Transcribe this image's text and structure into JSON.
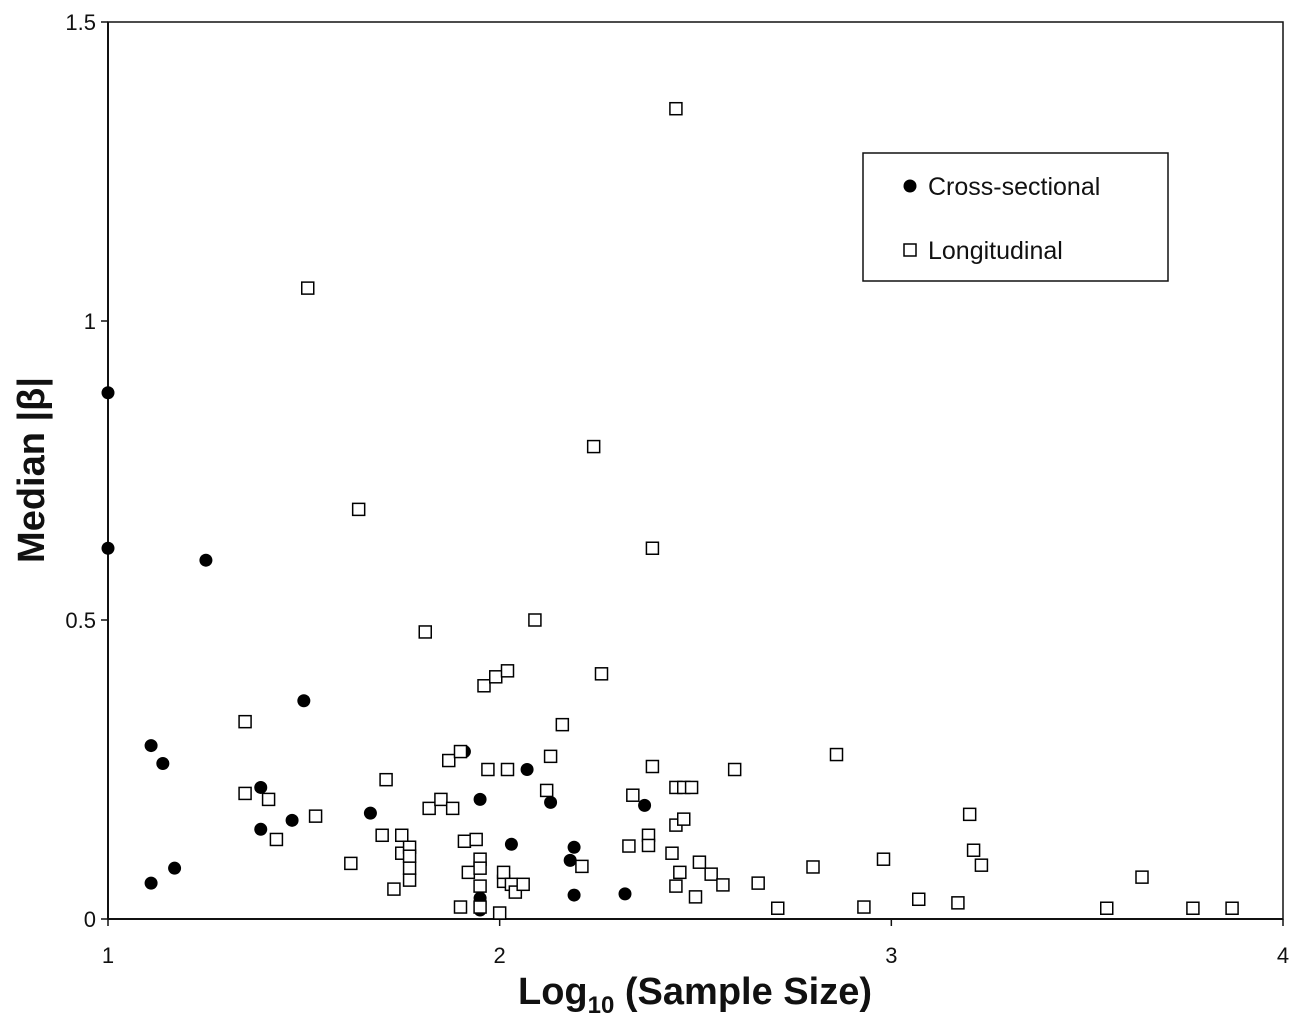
{
  "chart_data": {
    "type": "scatter",
    "xlabel": "Log",
    "xlabel_subscript": "10",
    "xlabel_rest": " (Sample Size)",
    "ylabel": "Median |β|",
    "xlim": [
      1,
      4
    ],
    "ylim": [
      0,
      1.5
    ],
    "x_ticks": [
      "1",
      "2",
      "3",
      "4"
    ],
    "y_ticks": [
      "0",
      "0.5",
      "1",
      "1.5"
    ],
    "grid": false,
    "legend_position": "top-right",
    "series": [
      {
        "name": "Cross-sectional",
        "marker": "filled-circle",
        "color": "#000000",
        "points": [
          [
            1.0,
            0.88
          ],
          [
            1.0,
            0.62
          ],
          [
            1.11,
            0.29
          ],
          [
            1.14,
            0.26
          ],
          [
            1.11,
            0.06
          ],
          [
            1.17,
            0.085
          ],
          [
            1.25,
            0.6
          ],
          [
            1.39,
            0.22
          ],
          [
            1.39,
            0.15
          ],
          [
            1.47,
            0.165
          ],
          [
            1.5,
            0.365
          ],
          [
            1.67,
            0.177
          ],
          [
            1.91,
            0.28
          ],
          [
            1.95,
            0.2
          ],
          [
            1.95,
            0.035
          ],
          [
            1.95,
            0.025
          ],
          [
            1.95,
            0.015
          ],
          [
            2.03,
            0.125
          ],
          [
            2.07,
            0.25
          ],
          [
            2.13,
            0.195
          ],
          [
            2.18,
            0.098
          ],
          [
            2.19,
            0.12
          ],
          [
            2.19,
            0.04
          ],
          [
            2.32,
            0.042
          ],
          [
            2.37,
            0.19
          ]
        ]
      },
      {
        "name": "Longitudinal",
        "marker": "open-square",
        "color": "#000000",
        "points": [
          [
            1.35,
            0.33
          ],
          [
            1.35,
            0.21
          ],
          [
            1.41,
            0.2
          ],
          [
            1.43,
            0.133
          ],
          [
            1.51,
            1.055
          ],
          [
            1.53,
            0.172
          ],
          [
            1.62,
            0.093
          ],
          [
            1.64,
            0.685
          ],
          [
            1.7,
            0.14
          ],
          [
            1.71,
            0.233
          ],
          [
            1.73,
            0.05
          ],
          [
            1.75,
            0.14
          ],
          [
            1.75,
            0.11
          ],
          [
            1.77,
            0.12
          ],
          [
            1.77,
            0.105
          ],
          [
            1.77,
            0.085
          ],
          [
            1.77,
            0.065
          ],
          [
            1.81,
            0.48
          ],
          [
            1.82,
            0.185
          ],
          [
            1.85,
            0.2
          ],
          [
            1.87,
            0.265
          ],
          [
            1.88,
            0.185
          ],
          [
            1.9,
            0.28
          ],
          [
            1.9,
            0.02
          ],
          [
            1.91,
            0.13
          ],
          [
            1.92,
            0.078
          ],
          [
            1.94,
            0.133
          ],
          [
            1.95,
            0.1
          ],
          [
            1.95,
            0.085
          ],
          [
            1.95,
            0.055
          ],
          [
            1.95,
            0.02
          ],
          [
            1.96,
            0.39
          ],
          [
            1.97,
            0.25
          ],
          [
            1.99,
            0.405
          ],
          [
            2.0,
            0.01
          ],
          [
            2.01,
            0.063
          ],
          [
            2.01,
            0.078
          ],
          [
            2.02,
            0.415
          ],
          [
            2.02,
            0.25
          ],
          [
            2.03,
            0.058
          ],
          [
            2.04,
            0.045
          ],
          [
            2.06,
            0.058
          ],
          [
            2.09,
            0.5
          ],
          [
            2.12,
            0.215
          ],
          [
            2.13,
            0.272
          ],
          [
            2.16,
            0.325
          ],
          [
            2.21,
            0.088
          ],
          [
            2.24,
            0.79
          ],
          [
            2.26,
            0.41
          ],
          [
            2.33,
            0.122
          ],
          [
            2.34,
            0.207
          ],
          [
            2.38,
            0.14
          ],
          [
            2.38,
            0.123
          ],
          [
            2.39,
            0.255
          ],
          [
            2.39,
            0.62
          ],
          [
            2.44,
            0.11
          ],
          [
            2.45,
            0.22
          ],
          [
            2.45,
            0.157
          ],
          [
            2.45,
            0.055
          ],
          [
            2.45,
            1.355
          ],
          [
            2.46,
            0.078
          ],
          [
            2.47,
            0.167
          ],
          [
            2.47,
            0.22
          ],
          [
            2.49,
            0.22
          ],
          [
            2.5,
            0.037
          ],
          [
            2.51,
            0.095
          ],
          [
            2.54,
            0.075
          ],
          [
            2.57,
            0.057
          ],
          [
            2.6,
            0.25
          ],
          [
            2.66,
            0.06
          ],
          [
            2.71,
            0.018
          ],
          [
            2.8,
            0.087
          ],
          [
            2.86,
            0.275
          ],
          [
            2.93,
            0.02
          ],
          [
            2.98,
            0.1
          ],
          [
            3.07,
            0.033
          ],
          [
            3.17,
            0.027
          ],
          [
            3.2,
            0.175
          ],
          [
            3.21,
            0.115
          ],
          [
            3.23,
            0.09
          ],
          [
            3.55,
            0.018
          ],
          [
            3.64,
            0.07
          ],
          [
            3.77,
            0.018
          ],
          [
            3.87,
            0.018
          ]
        ]
      }
    ]
  }
}
